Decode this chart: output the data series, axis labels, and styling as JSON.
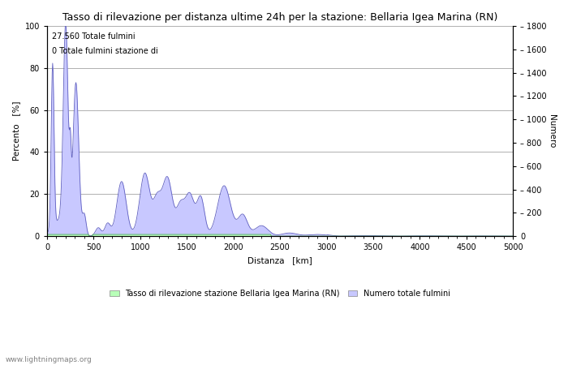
{
  "title": "Tasso di rilevazione per distanza ultime 24h per la stazione: Bellaria Igea Marina (RN)",
  "xlabel": "Distanza   [km]",
  "ylabel_left": "Percento   [%]",
  "ylabel_right": "Numero",
  "annotation_line1": "27.560 Totale fulmini",
  "annotation_line2": "0 Totale fulmini stazione di",
  "xlim": [
    0,
    5000
  ],
  "ylim_left": [
    0,
    100
  ],
  "ylim_right": [
    0,
    1800
  ],
  "xticks": [
    0,
    500,
    1000,
    1500,
    2000,
    2500,
    3000,
    3500,
    4000,
    4500,
    5000
  ],
  "yticks_left": [
    0,
    20,
    40,
    60,
    80,
    100
  ],
  "yticks_right": [
    0,
    200,
    400,
    600,
    800,
    1000,
    1200,
    1400,
    1600,
    1800
  ],
  "legend_label_green": "Tasso di rilevazione stazione Bellaria Igea Marina (RN)",
  "legend_label_blue": "Numero totale fulmini",
  "fill_color_blue": "#c8c8ff",
  "line_color_blue": "#6060c0",
  "fill_color_green": "#b8ffb8",
  "line_color_green": "#50b850",
  "background_color": "#ffffff",
  "grid_color": "#b0b0b0",
  "watermark": "www.lightningmaps.org",
  "title_fontsize": 9,
  "axis_fontsize": 7.5,
  "tick_fontsize": 7,
  "annotation_fontsize": 7,
  "watermark_fontsize": 6.5,
  "legend_fontsize": 7
}
